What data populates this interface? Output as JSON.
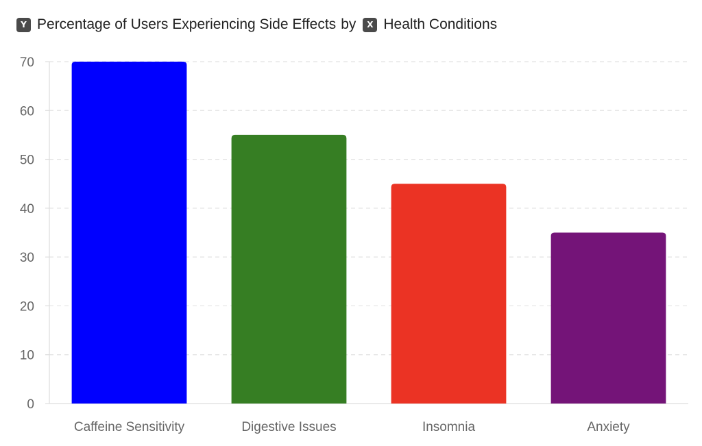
{
  "header": {
    "y_badge": "Y",
    "y_title": "Percentage of Users Experiencing Side Effects",
    "connector": "by",
    "x_badge": "X",
    "x_title": "Health Conditions"
  },
  "chart_data": {
    "type": "bar",
    "title": "Percentage of Users Experiencing Side Effects by Health Conditions",
    "xlabel": "Health Conditions",
    "ylabel": "Percentage of Users Experiencing Side Effects",
    "categories": [
      "Caffeine Sensitivity",
      "Digestive Issues",
      "Insomnia",
      "Anxiety"
    ],
    "values": [
      70,
      55,
      45,
      35
    ],
    "colors": [
      "#0000ff",
      "#367e23",
      "#eb3324",
      "#741478"
    ],
    "ylim": [
      0,
      70
    ],
    "yticks": [
      0,
      10,
      20,
      30,
      40,
      50,
      60,
      70
    ],
    "grid": true,
    "legend": "none"
  }
}
